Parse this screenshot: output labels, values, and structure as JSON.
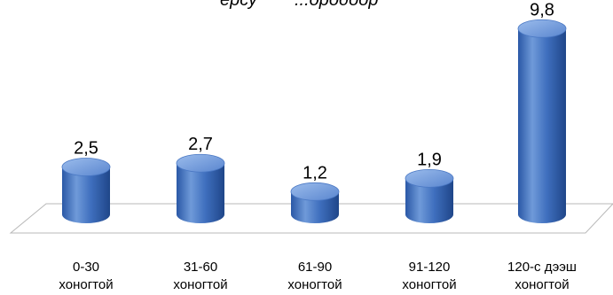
{
  "chart_data": {
    "type": "bar",
    "title_fragments": [
      "ерсу",
      "...ородоор"
    ],
    "categories": [
      [
        "0-30",
        "хоногтой"
      ],
      [
        "31-60",
        "хоногтой"
      ],
      [
        "61-90",
        "хоногтой"
      ],
      [
        "91-120",
        "хоногтой"
      ],
      [
        "120-с дээш",
        "хоногтой"
      ]
    ],
    "values": [
      2.5,
      2.7,
      1.2,
      1.9,
      9.8
    ],
    "value_labels": [
      "2,5",
      "2,7",
      "1,2",
      "1,9",
      "9,8"
    ],
    "ylim": [
      0,
      10
    ],
    "bar_shape": "cylinder",
    "grid": false,
    "colors": {
      "bar_light": "#6f9ad9",
      "bar_mid": "#3f6fbe",
      "bar_dark": "#1f4689",
      "bar_top": "#7ea6e3",
      "floor_line": "#b8b8b8"
    }
  }
}
